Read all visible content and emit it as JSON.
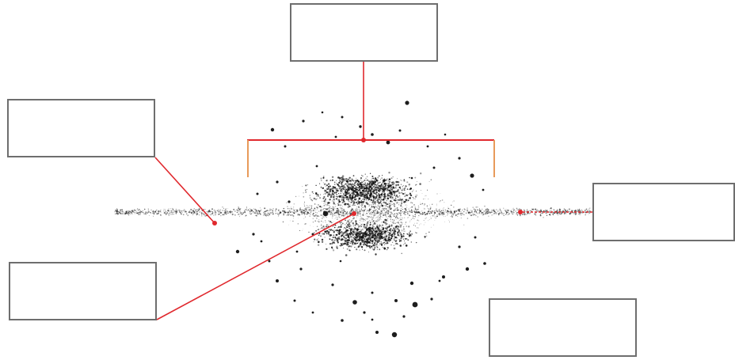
{
  "diagram": {
    "labels": {
      "top_box": "",
      "upper_left_box": "",
      "right_box": "",
      "lower_left_box": "",
      "lower_right_box": ""
    },
    "colors": {
      "pointer_line": "#e0282d",
      "bracket_side": "#e89a5a",
      "box_border": "#6e6e6e",
      "stars": "#111111"
    }
  }
}
